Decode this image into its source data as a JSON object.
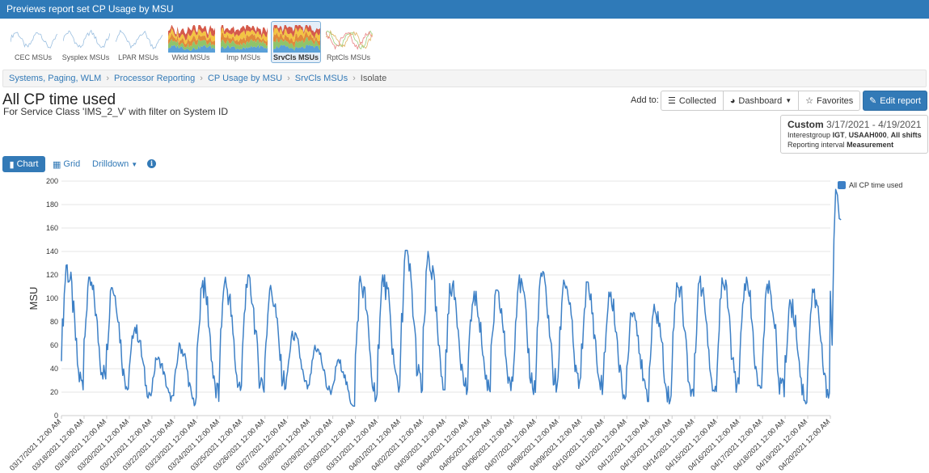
{
  "window": {
    "title": "Previews report set CP Usage by MSU"
  },
  "thumbnails": [
    {
      "label": "CEC MSUs",
      "style": "line",
      "active": false
    },
    {
      "label": "Sysplex MSUs",
      "style": "line",
      "active": false
    },
    {
      "label": "LPAR MSUs",
      "style": "line",
      "active": false
    },
    {
      "label": "Wkld MSUs",
      "style": "stacked",
      "active": false
    },
    {
      "label": "Imp MSUs",
      "style": "stacked",
      "active": false
    },
    {
      "label": "SrvCls MSUs",
      "style": "stacked",
      "active": true
    },
    {
      "label": "RptCls MSUs",
      "style": "faint",
      "active": false
    }
  ],
  "breadcrumb": [
    "Systems, Paging, WLM",
    "Processor Reporting",
    "CP Usage by MSU",
    "SrvCls MSUs",
    "Isolate"
  ],
  "header": {
    "title": "All CP time used",
    "subtitle": "For Service Class 'IMS_2_V' with filter on System ID"
  },
  "toolbar": {
    "add_to_label": "Add to:",
    "collected_label": "Collected",
    "dashboard_label": "Dashboard",
    "favorites_label": "Favorites",
    "edit_label": "Edit report"
  },
  "range": {
    "type_label": "Custom",
    "dates": "3/17/2021 - 4/19/2021",
    "interest_prefix": "Interestgroup",
    "interest_group": "IGT",
    "system": "USAAH000",
    "shifts": "All shifts",
    "interval_label": "Reporting interval",
    "interval_value": "Measurement"
  },
  "tabs": {
    "chart": "Chart",
    "grid": "Grid",
    "drilldown": "Drilldown"
  },
  "colors": {
    "accent": "#337ab7",
    "series": "#3d80c6"
  },
  "chart_data": {
    "type": "line",
    "ylabel": "MSU",
    "ylim": [
      0,
      200
    ],
    "yticks": [
      0,
      20,
      40,
      60,
      80,
      100,
      120,
      140,
      160,
      180,
      200
    ],
    "xlabels": [
      "03/17/2021 12:00 AM",
      "03/18/2021 12:00 AM",
      "03/19/2021 12:00 AM",
      "03/20/2021 12:00 AM",
      "03/21/2021 12:00 AM",
      "03/22/2021 12:00 AM",
      "03/23/2021 12:00 AM",
      "03/24/2021 12:00 AM",
      "03/25/2021 12:00 AM",
      "03/26/2021 12:00 AM",
      "03/27/2021 12:00 AM",
      "03/28/2021 12:00 AM",
      "03/29/2021 12:00 AM",
      "03/30/2021 12:00 AM",
      "03/31/2021 12:00 AM",
      "04/01/2021 12:00 AM",
      "04/02/2021 12:00 AM",
      "04/03/2021 12:00 AM",
      "04/04/2021 12:00 AM",
      "04/05/2021 12:00 AM",
      "04/06/2021 12:00 AM",
      "04/07/2021 12:00 AM",
      "04/08/2021 12:00 AM",
      "04/09/2021 12:00 AM",
      "04/10/2021 12:00 AM",
      "04/11/2021 12:00 AM",
      "04/12/2021 12:00 AM",
      "04/13/2021 12:00 AM",
      "04/14/2021 12:00 AM",
      "04/15/2021 12:00 AM",
      "04/16/2021 12:00 AM",
      "04/17/2021 12:00 AM",
      "04/18/2021 12:00 AM",
      "04/19/2021 12:00 AM",
      "04/20/2021 12:00 AM"
    ],
    "series": [
      {
        "name": "All CP time used",
        "daily_peaks": [
          130,
          118,
          115,
          78,
          50,
          62,
          118,
          118,
          120,
          111,
          72,
          60,
          48,
          119,
          120,
          141,
          140,
          115,
          106,
          107,
          120,
          123,
          120,
          114,
          107,
          95,
          95,
          118,
          119,
          119,
          118,
          117,
          100,
          108,
          193
        ],
        "daily_lows": [
          20,
          30,
          22,
          15,
          12,
          8,
          10,
          18,
          20,
          22,
          20,
          18,
          8,
          12,
          20,
          18,
          22,
          18,
          20,
          20,
          18,
          20,
          20,
          18,
          14,
          12,
          10,
          14,
          16,
          16,
          14,
          15,
          10,
          15,
          60
        ],
        "final_values": [
          106,
          60,
          150,
          193,
          188,
          168,
          167
        ]
      }
    ]
  }
}
